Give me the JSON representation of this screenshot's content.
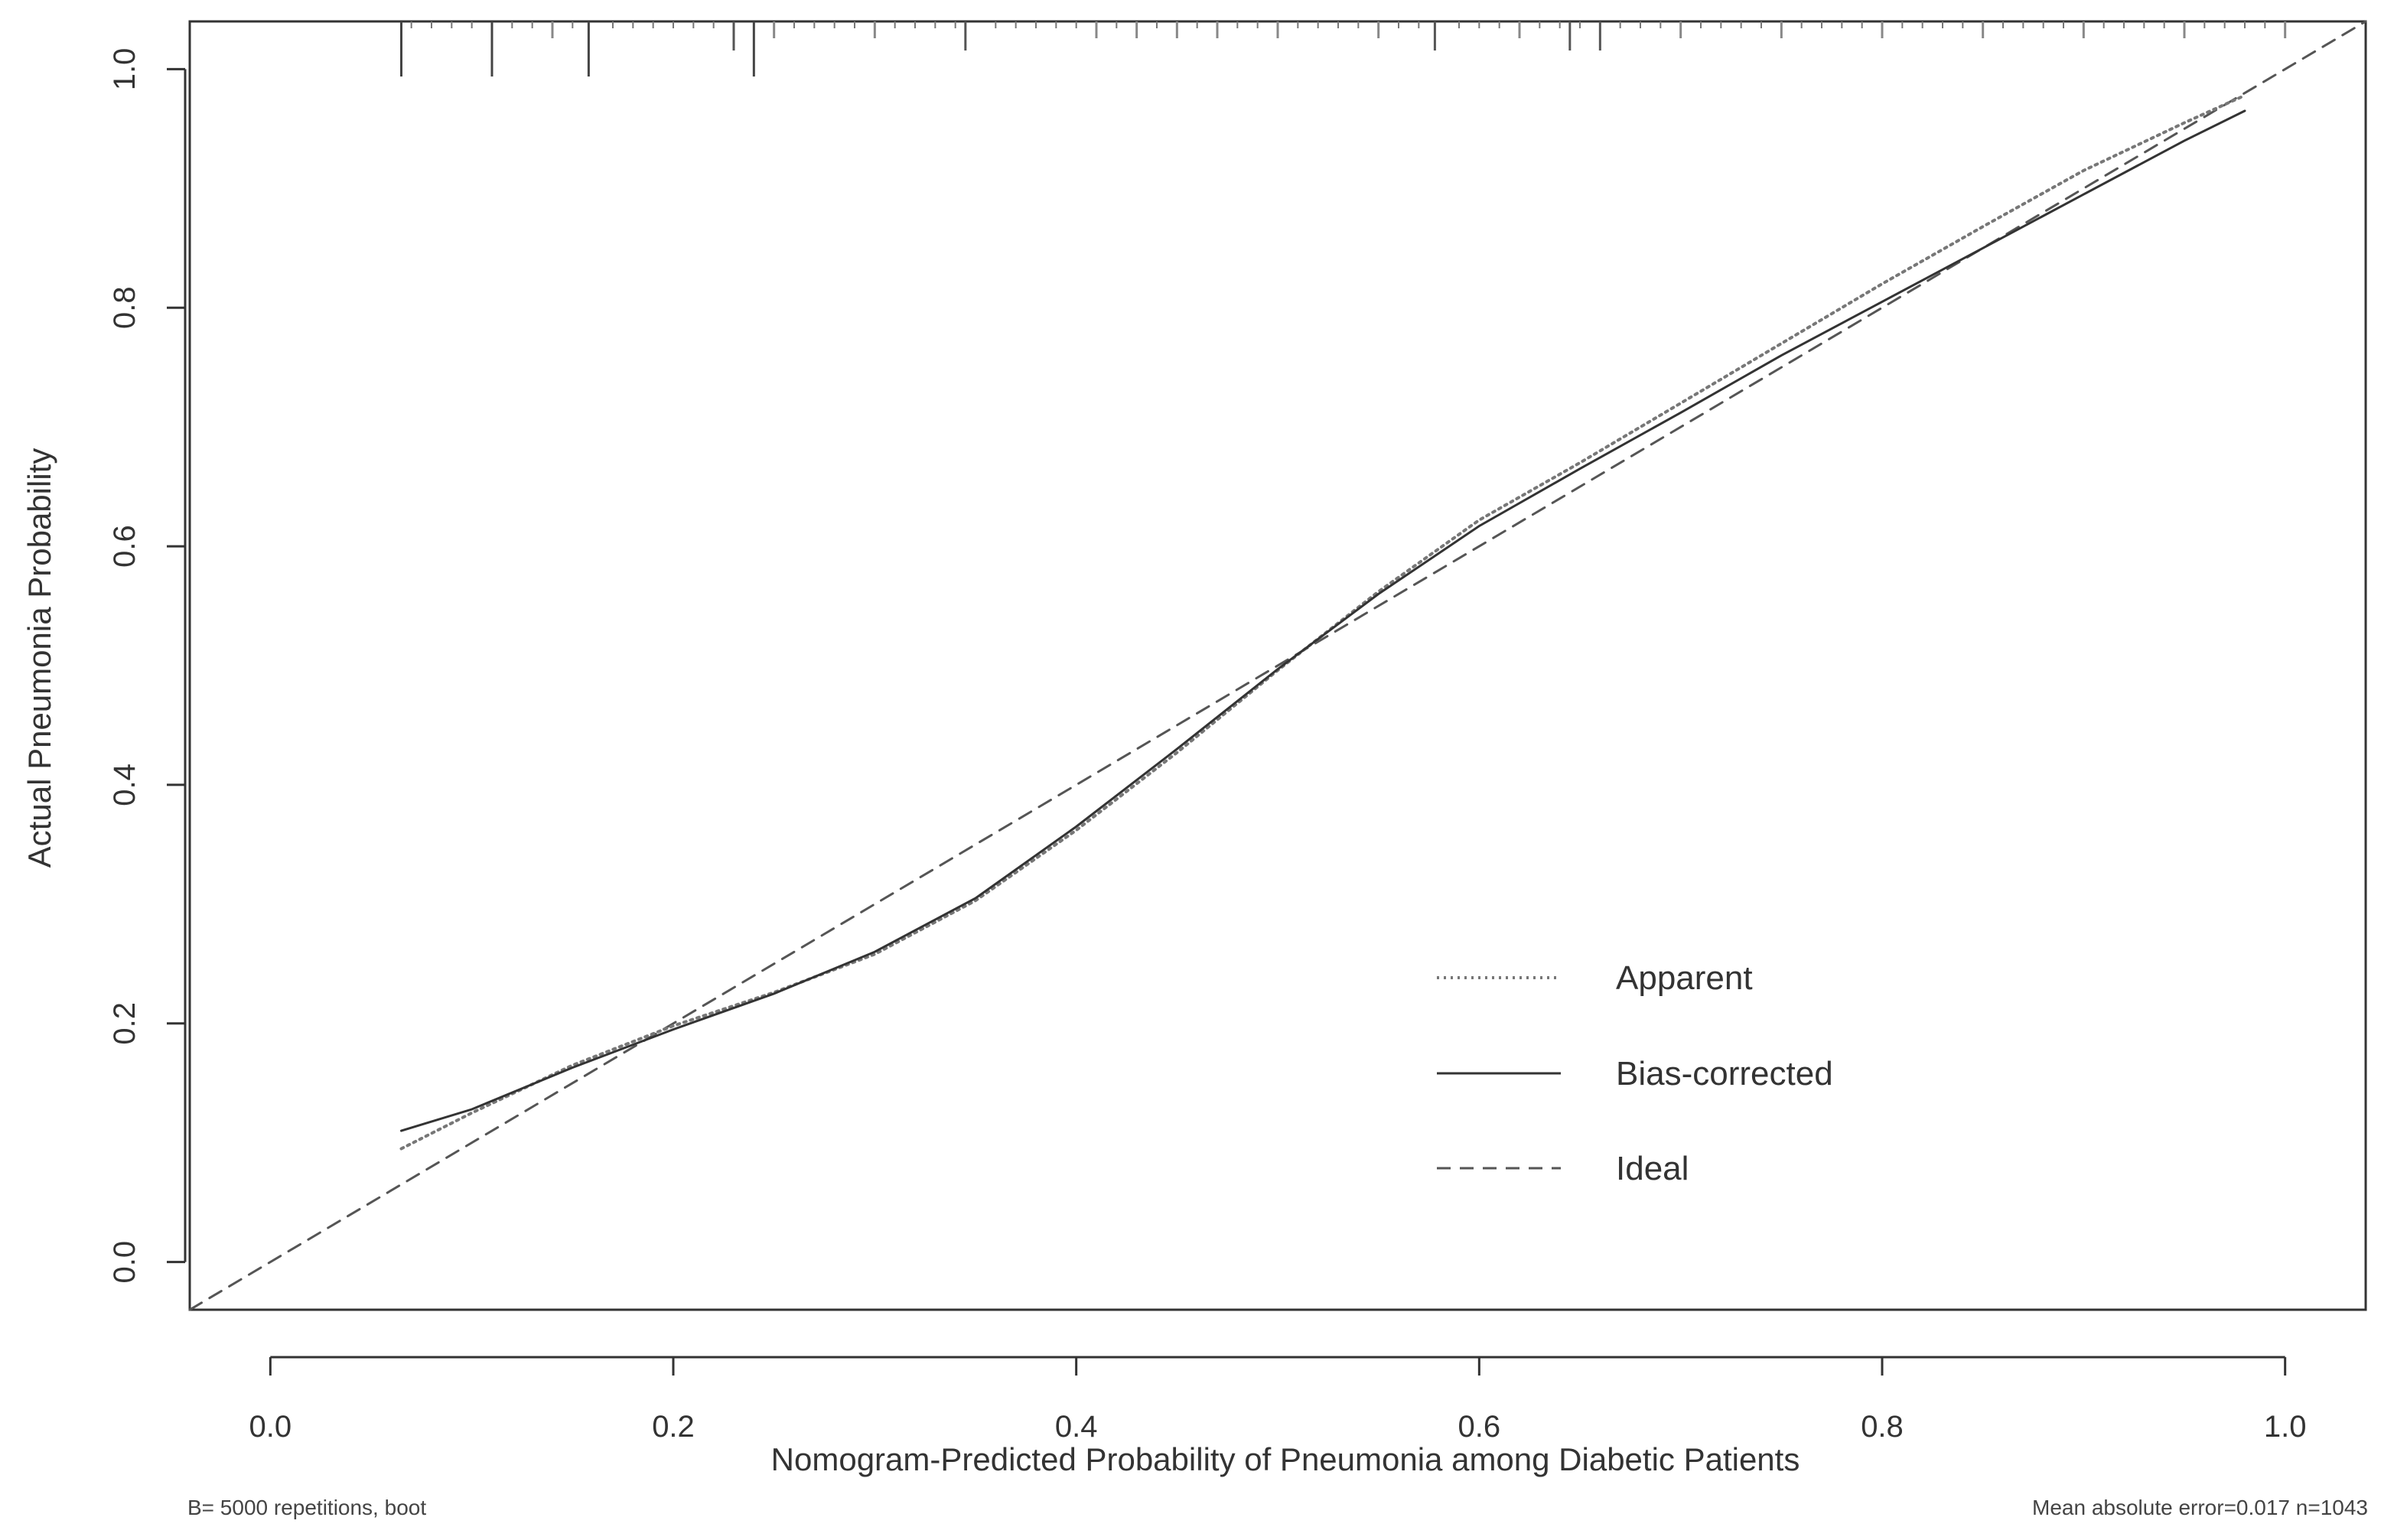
{
  "chart_data": {
    "type": "line",
    "xlabel": "Nomogram-Predicted Probability of Pneumonia among Diabetic Patients",
    "ylabel": "Actual Pneumonia Probability",
    "xlim": [
      -0.04,
      1.04
    ],
    "ylim": [
      -0.04,
      1.04
    ],
    "x_ticks": [
      0.0,
      0.2,
      0.4,
      0.6,
      0.8,
      1.0
    ],
    "x_tick_labels": [
      "0.0",
      "0.2",
      "0.4",
      "0.6",
      "0.8",
      "1.0"
    ],
    "y_ticks": [
      0.0,
      0.2,
      0.4,
      0.6,
      0.8,
      1.0
    ],
    "y_tick_labels": [
      "0.0",
      "0.2",
      "0.4",
      "0.6",
      "0.8",
      "1.0"
    ],
    "grid": false,
    "legend_position": "bottom-right",
    "series": [
      {
        "name": "Apparent",
        "style": "dotted",
        "color": "#777777",
        "x": [
          0.065,
          0.1,
          0.15,
          0.2,
          0.25,
          0.3,
          0.35,
          0.4,
          0.45,
          0.5,
          0.55,
          0.6,
          0.65,
          0.7,
          0.75,
          0.8,
          0.85,
          0.9,
          0.95,
          0.98
        ],
        "y": [
          0.095,
          0.125,
          0.165,
          0.198,
          0.226,
          0.258,
          0.303,
          0.362,
          0.427,
          0.496,
          0.562,
          0.622,
          0.67,
          0.72,
          0.77,
          0.82,
          0.868,
          0.915,
          0.955,
          0.978
        ]
      },
      {
        "name": "Bias-corrected",
        "style": "solid",
        "color": "#333333",
        "x": [
          0.065,
          0.1,
          0.15,
          0.2,
          0.25,
          0.3,
          0.35,
          0.4,
          0.45,
          0.5,
          0.55,
          0.6,
          0.65,
          0.7,
          0.75,
          0.8,
          0.85,
          0.9,
          0.95,
          0.98
        ],
        "y": [
          0.11,
          0.128,
          0.163,
          0.195,
          0.225,
          0.26,
          0.305,
          0.365,
          0.43,
          0.497,
          0.56,
          0.617,
          0.665,
          0.712,
          0.76,
          0.805,
          0.85,
          0.895,
          0.94,
          0.965
        ]
      },
      {
        "name": "Ideal",
        "style": "dashed",
        "color": "#555555",
        "x": [
          -0.04,
          1.04
        ],
        "y": [
          -0.04,
          1.04
        ]
      }
    ],
    "rug": {
      "tall": [
        0.065,
        0.11,
        0.158,
        0.24
      ],
      "medium": [
        0.23,
        0.345,
        0.578,
        0.645,
        0.66
      ],
      "short": [
        0.14,
        0.25,
        0.3,
        0.41,
        0.43,
        0.45,
        0.47,
        0.5,
        0.55,
        0.62,
        0.7,
        0.75,
        0.8,
        0.85,
        0.9,
        0.95,
        1.0
      ],
      "tiny": [
        0.07,
        0.08,
        0.09,
        0.1,
        0.12,
        0.13,
        0.15,
        0.17,
        0.18,
        0.19,
        0.2,
        0.21,
        0.22,
        0.26,
        0.27,
        0.28,
        0.29,
        0.31,
        0.32,
        0.33,
        0.34,
        0.36,
        0.37,
        0.38,
        0.39,
        0.4,
        0.42,
        0.44,
        0.46,
        0.48,
        0.49,
        0.51,
        0.52,
        0.53,
        0.54,
        0.56,
        0.57,
        0.59,
        0.6,
        0.61,
        0.63,
        0.64,
        0.65,
        0.67,
        0.68,
        0.69,
        0.71,
        0.72,
        0.73,
        0.74,
        0.76,
        0.77,
        0.78,
        0.79,
        0.81,
        0.82,
        0.83,
        0.84,
        0.86,
        0.87,
        0.88,
        0.89,
        0.91,
        0.92,
        0.93,
        0.94,
        0.96,
        0.97,
        0.98,
        0.99
      ]
    },
    "footnote_left": "B= 5000 repetitions, boot",
    "footnote_right": "Mean absolute error=0.017 n=1043"
  }
}
